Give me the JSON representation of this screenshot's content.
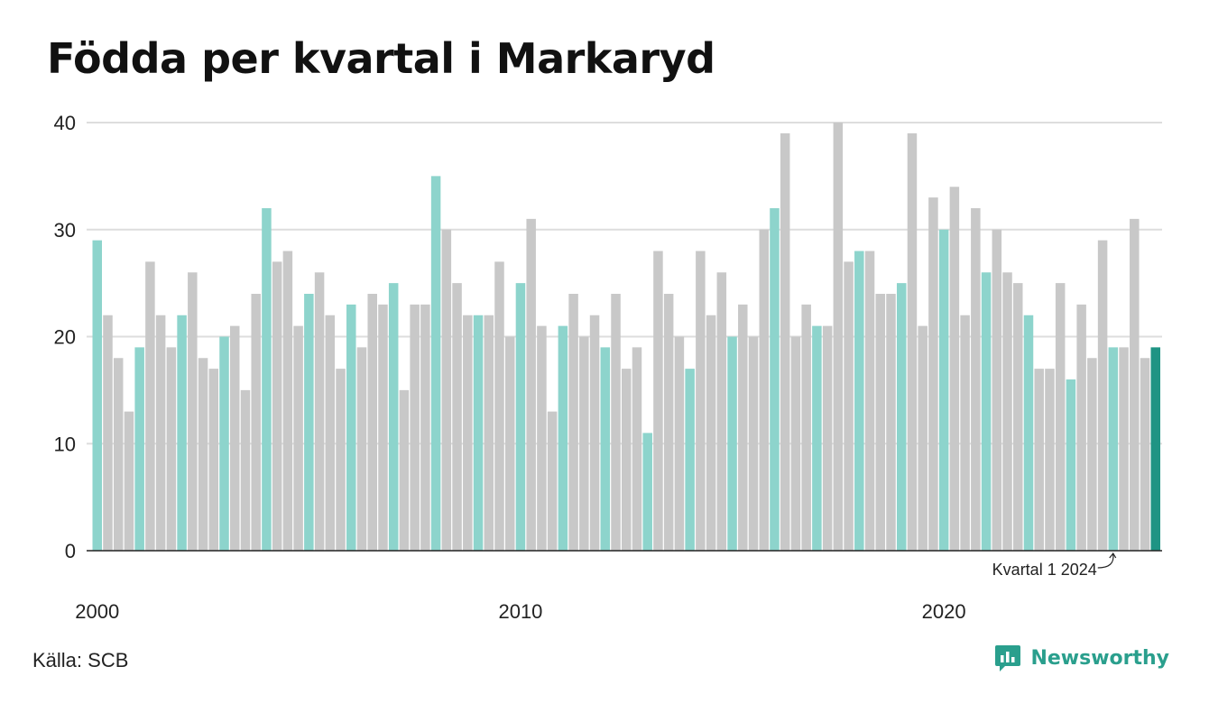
{
  "title": "Födda per kvartal i Markaryd",
  "source": "Källa: SCB",
  "brand": {
    "name": "Newsworthy",
    "color": "#2a9f8d",
    "icon": "newsworthy-logo-icon"
  },
  "colors": {
    "highlight": "#8dd4cc",
    "normal": "#c8c8c8",
    "latest": "#1f9484",
    "grid": "#dddddd",
    "axis": "#222222"
  },
  "chart_data": {
    "type": "bar",
    "title": "Födda per kvartal i Markaryd",
    "start": {
      "year": 2000,
      "quarter": 1
    },
    "highlight_quarter": 1,
    "values": [
      29,
      22,
      18,
      13,
      19,
      27,
      22,
      19,
      22,
      26,
      18,
      17,
      20,
      21,
      15,
      24,
      32,
      27,
      28,
      21,
      24,
      26,
      22,
      17,
      23,
      19,
      24,
      23,
      25,
      15,
      23,
      23,
      35,
      30,
      25,
      22,
      22,
      22,
      27,
      20,
      25,
      31,
      21,
      13,
      21,
      24,
      20,
      22,
      19,
      24,
      17,
      19,
      11,
      28,
      24,
      20,
      17,
      28,
      22,
      26,
      20,
      23,
      20,
      30,
      32,
      39,
      20,
      23,
      21,
      21,
      40,
      27,
      28,
      28,
      24,
      24,
      25,
      39,
      21,
      33,
      30,
      34,
      22,
      32,
      26,
      30,
      26,
      25,
      22,
      17,
      17,
      25,
      16,
      23,
      18,
      29,
      19,
      19,
      31,
      18,
      19
    ],
    "ylim": [
      0,
      40
    ],
    "yticks": [
      0,
      10,
      20,
      30,
      40
    ],
    "xticks": [
      "2000",
      "2010",
      "2020"
    ],
    "grid": true,
    "annotation": "Kvartal 1 2024"
  }
}
